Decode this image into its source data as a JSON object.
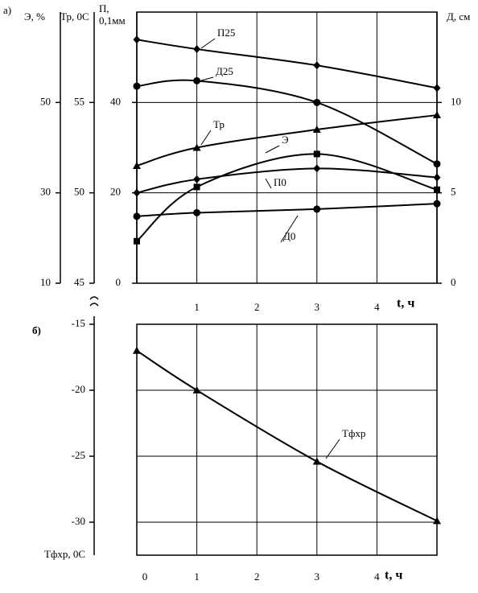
{
  "chart_data": [
    {
      "type": "line",
      "panel_label": "а)",
      "x": [
        0,
        1,
        3,
        5
      ],
      "xlim": [
        0,
        5
      ],
      "xticks": [
        1,
        2,
        3,
        4
      ],
      "x_label": "t, ч",
      "grid": true,
      "color": "#000000",
      "axes": [
        {
          "id": "y",
          "label": "Э, %",
          "ylim": [
            10,
            70
          ],
          "yticks": [
            10,
            30,
            50
          ]
        },
        {
          "id": "y2",
          "label": "Тр, 0С",
          "ylim": [
            45,
            60
          ],
          "yticks": [
            45,
            50,
            55
          ]
        },
        {
          "id": "y3",
          "label": [
            "П,",
            "0,1мм"
          ],
          "ylim": [
            0,
            60
          ],
          "yticks": [
            0,
            20,
            40
          ]
        },
        {
          "id": "y4",
          "label": "Д, см",
          "ylim": [
            0,
            15
          ],
          "yticks": [
            0,
            5,
            10
          ]
        }
      ],
      "series": [
        {
          "name": "П25",
          "axis": "y3",
          "marker": "diamond",
          "values": [
            53.9,
            51.8,
            48.2,
            43.2
          ]
        },
        {
          "name": "Д25",
          "axis": "y4",
          "marker": "circle",
          "values": [
            10.9,
            11.2,
            10.0,
            6.6
          ]
        },
        {
          "name": "Тр",
          "axis": "y2",
          "marker": "triangle",
          "values": [
            51.5,
            52.5,
            53.5,
            54.3
          ]
        },
        {
          "name": "Э",
          "axis": "y",
          "marker": "square",
          "values": [
            19.3,
            31.3,
            38.6,
            30.7
          ]
        },
        {
          "name": "П0",
          "axis": "y3",
          "marker": "diamond",
          "values": [
            20,
            23,
            25.4,
            23.4
          ]
        },
        {
          "name": "Д0",
          "axis": "y4",
          "marker": "circle",
          "values": [
            3.7,
            3.9,
            4.1,
            4.4
          ]
        }
      ]
    },
    {
      "type": "line",
      "panel_label": "б)",
      "x": [
        0,
        1,
        3,
        5
      ],
      "xlim": [
        0,
        5
      ],
      "xticks": [
        0,
        1,
        2,
        3,
        4
      ],
      "x_label": "t, ч",
      "grid": true,
      "color": "#000000",
      "y_label": "Тфхр, 0С",
      "ylim": [
        -32.5,
        -15
      ],
      "yticks": [
        -15,
        -20,
        -25,
        -30
      ],
      "series": [
        {
          "name": "Тфхр",
          "marker": "triangle",
          "values": [
            -17,
            -20,
            -25.4,
            -29.9
          ]
        }
      ]
    }
  ]
}
